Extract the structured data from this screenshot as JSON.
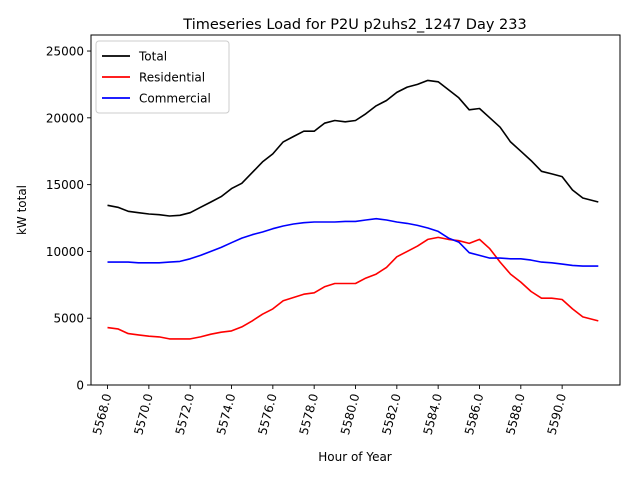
{
  "chart_data": {
    "type": "line",
    "title": "Timeseries Load for P2U p2uhs2_1247  Day 233",
    "xlabel": "Hour of Year",
    "ylabel": "kW total",
    "xlim": [
      5567.2,
      5592.8
    ],
    "ylim": [
      0,
      26200
    ],
    "grid": false,
    "legend_position": "upper-left",
    "xticks": [
      {
        "value": 5568,
        "label": "5568.0"
      },
      {
        "value": 5570,
        "label": "5570.0"
      },
      {
        "value": 5572,
        "label": "5572.0"
      },
      {
        "value": 5574,
        "label": "5574.0"
      },
      {
        "value": 5576,
        "label": "5576.0"
      },
      {
        "value": 5578,
        "label": "5578.0"
      },
      {
        "value": 5580,
        "label": "5580.0"
      },
      {
        "value": 5582,
        "label": "5582.0"
      },
      {
        "value": 5584,
        "label": "5584.0"
      },
      {
        "value": 5586,
        "label": "5586.0"
      },
      {
        "value": 5588,
        "label": "5588.0"
      },
      {
        "value": 5590,
        "label": "5590.0"
      }
    ],
    "yticks": [
      {
        "value": 0,
        "label": "0"
      },
      {
        "value": 5000,
        "label": "5000"
      },
      {
        "value": 10000,
        "label": "10000"
      },
      {
        "value": 15000,
        "label": "15000"
      },
      {
        "value": 20000,
        "label": "20000"
      },
      {
        "value": 25000,
        "label": "25000"
      }
    ],
    "x": [
      5568.0,
      5568.5,
      5569.0,
      5569.5,
      5570.0,
      5570.5,
      5571.0,
      5571.5,
      5572.0,
      5572.5,
      5573.0,
      5573.5,
      5574.0,
      5574.5,
      5575.0,
      5575.5,
      5576.0,
      5576.5,
      5577.0,
      5577.5,
      5578.0,
      5578.5,
      5579.0,
      5579.5,
      5580.0,
      5580.5,
      5581.0,
      5581.5,
      5582.0,
      5582.5,
      5583.0,
      5583.5,
      5584.0,
      5584.5,
      5585.0,
      5585.5,
      5586.0,
      5586.5,
      5587.0,
      5587.5,
      5588.0,
      5588.5,
      5589.0,
      5589.5,
      5590.0,
      5590.5,
      5591.0,
      5591.75
    ],
    "series": [
      {
        "name": "Total",
        "color": "#000000",
        "values": [
          13450,
          13300,
          13000,
          12900,
          12800,
          12750,
          12650,
          12700,
          12900,
          13300,
          13700,
          14100,
          14700,
          15100,
          15900,
          16700,
          17300,
          18200,
          18600,
          19000,
          19000,
          19600,
          19800,
          19700,
          19800,
          20300,
          20900,
          21300,
          21900,
          22300,
          22500,
          22800,
          22700,
          22100,
          21500,
          20600,
          20700,
          20000,
          19300,
          18200,
          17500,
          16800,
          16000,
          15800,
          15600,
          14600,
          14000,
          13700
        ]
      },
      {
        "name": "Residential",
        "color": "#ff0000",
        "values": [
          4300,
          4200,
          3850,
          3750,
          3650,
          3600,
          3450,
          3450,
          3450,
          3600,
          3800,
          3950,
          4050,
          4350,
          4800,
          5300,
          5700,
          6300,
          6550,
          6800,
          6900,
          7350,
          7600,
          7600,
          7600,
          8000,
          8300,
          8800,
          9600,
          10000,
          10400,
          10900,
          11050,
          10900,
          10800,
          10600,
          10900,
          10200,
          9200,
          8300,
          7700,
          7000,
          6500,
          6500,
          6400,
          5700,
          5100,
          4800
        ]
      },
      {
        "name": "Commercial",
        "color": "#0000ff",
        "values": [
          9200,
          9200,
          9200,
          9150,
          9150,
          9150,
          9200,
          9250,
          9450,
          9700,
          10000,
          10300,
          10650,
          11000,
          11250,
          11450,
          11700,
          11900,
          12050,
          12150,
          12200,
          12200,
          12200,
          12250,
          12250,
          12350,
          12450,
          12350,
          12200,
          12100,
          11950,
          11750,
          11500,
          11000,
          10700,
          9900,
          9700,
          9500,
          9500,
          9450,
          9450,
          9350,
          9200,
          9150,
          9050,
          8950,
          8900,
          8900
        ]
      }
    ]
  }
}
